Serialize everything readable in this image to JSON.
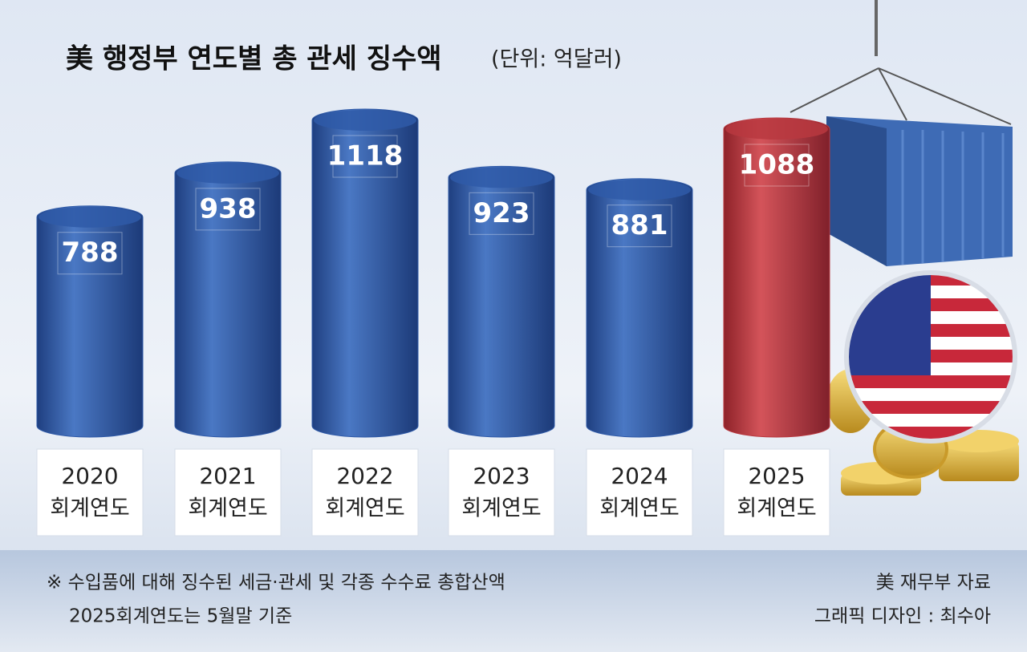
{
  "chart_data": {
    "type": "bar",
    "title": "美 행정부 연도별 총 관세 징수액",
    "subtitle": "(단위: 억달러)",
    "categories": [
      "2020",
      "2021",
      "2022",
      "2023",
      "2024",
      "2025"
    ],
    "category_suffix": "회계연도",
    "values": [
      788,
      938,
      1118,
      923,
      881,
      1088
    ],
    "colors": [
      "#2f5aa8",
      "#2f5aa8",
      "#2f5aa8",
      "#2f5aa8",
      "#2f5aa8",
      "#b8383f"
    ],
    "ylim": [
      0,
      1200
    ],
    "notes": [
      "※ 수입품에 대해 징수된 세금·관세 및 각종 수수료 총합산액",
      "2025회계연도는 5월말 기준"
    ],
    "source": "美 재무부 자료",
    "credit": "그래픽 디자인 : 최수아"
  }
}
